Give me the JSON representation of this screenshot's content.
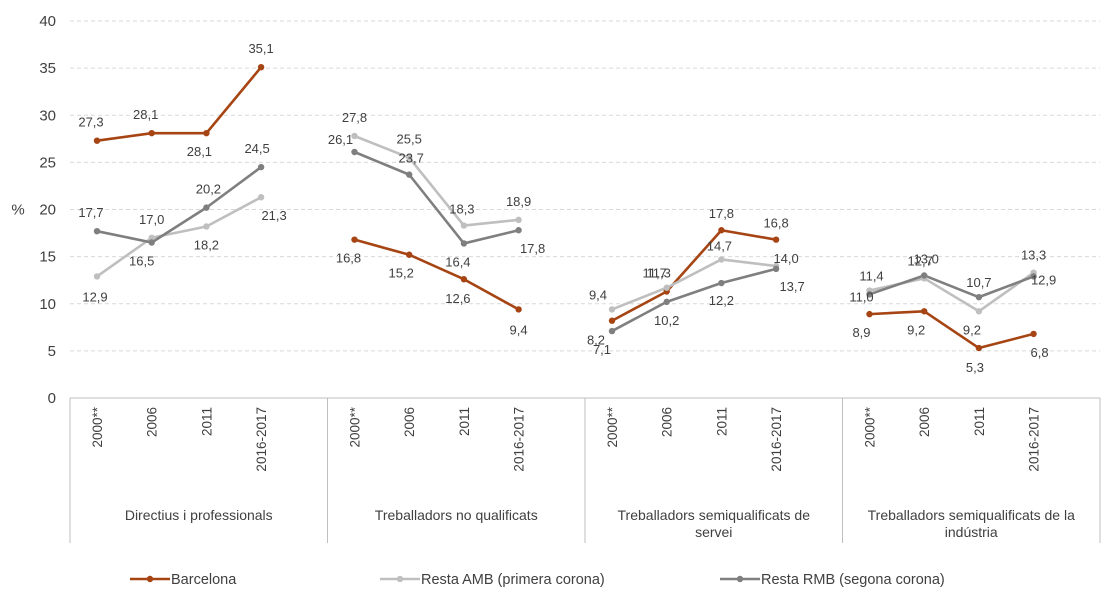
{
  "chart_data": {
    "type": "line",
    "ylabel": "%",
    "ylim": [
      0,
      40
    ],
    "yticks": [
      0,
      5,
      10,
      15,
      20,
      25,
      30,
      35,
      40
    ],
    "grid": "horizontal dashed",
    "legend_position": "bottom",
    "categories": [
      "2000**",
      "2006",
      "2011",
      "2016-2017"
    ],
    "groups": [
      {
        "label": "Directius i professionals"
      },
      {
        "label": "Treballadors no qualificats"
      },
      {
        "label": "Treballadors semiqualificats de servei"
      },
      {
        "label": "Treballadors semiqualificats de la indústria"
      }
    ],
    "series": [
      {
        "name": "Barcelona",
        "color": "#a64513",
        "values": [
          [
            27.3,
            28.1,
            28.1,
            35.1
          ],
          [
            16.8,
            15.2,
            12.6,
            9.4
          ],
          [
            8.2,
            11.3,
            17.8,
            16.8
          ],
          [
            8.9,
            9.2,
            5.3,
            6.8
          ]
        ],
        "labels": [
          [
            "27,3",
            "28,1",
            "28,1",
            "35,1"
          ],
          [
            "16,8",
            "15,2",
            "12,6",
            "9,4"
          ],
          [
            "8,2",
            "11,3",
            "17,8",
            "16,8"
          ],
          [
            "8,9",
            "9,2",
            "5,3",
            "6,8"
          ]
        ]
      },
      {
        "name": "Resta AMB (primera corona)",
        "color": "#bfbfbf",
        "values": [
          [
            12.9,
            17.0,
            18.2,
            21.3
          ],
          [
            27.8,
            25.5,
            18.3,
            18.9
          ],
          [
            9.4,
            11.7,
            14.7,
            14.0
          ],
          [
            11.4,
            12.7,
            9.2,
            13.3
          ]
        ],
        "labels": [
          [
            "12,9",
            "17,0",
            "18,2",
            "21,3"
          ],
          [
            "27,8",
            "25,5",
            "18,3",
            "18,9"
          ],
          [
            "9,4",
            "11,7",
            "14,7",
            "14,0"
          ],
          [
            "11,4",
            "12,7",
            "9,2",
            "13,3"
          ]
        ]
      },
      {
        "name": "Resta RMB (segona corona)",
        "color": "#7f7f7f",
        "values": [
          [
            17.7,
            16.5,
            20.2,
            24.5
          ],
          [
            26.1,
            23.7,
            16.4,
            17.8
          ],
          [
            7.1,
            10.2,
            12.2,
            13.7
          ],
          [
            11.0,
            13.0,
            10.7,
            12.9
          ]
        ],
        "labels": [
          [
            "17,7",
            "16,5",
            "20,2",
            "24,5"
          ],
          [
            "26,1",
            "23,7",
            "16,4",
            "17,8"
          ],
          [
            "7,1",
            "10,2",
            "12,2",
            "13,7"
          ],
          [
            "11,0",
            "13,0",
            "10,7",
            "12,9"
          ]
        ]
      }
    ]
  }
}
